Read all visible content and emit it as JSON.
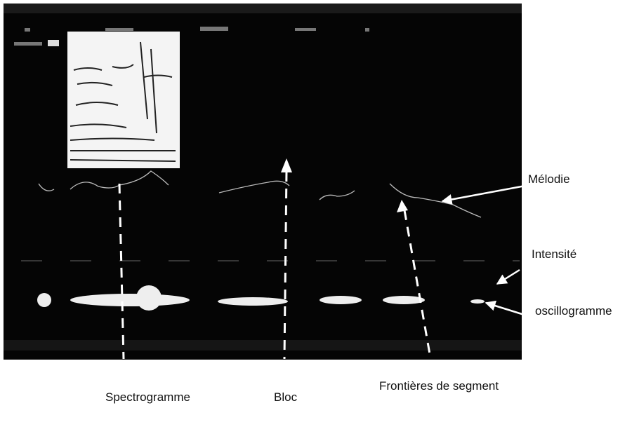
{
  "annotations": {
    "melody": "Mélodie",
    "intensity": "Intensité",
    "oscillogram": "oscillogramme"
  },
  "captions": {
    "spectrogram": "Spectrogramme",
    "block": "Bloc",
    "segment_boundaries": "Frontières de segment"
  }
}
